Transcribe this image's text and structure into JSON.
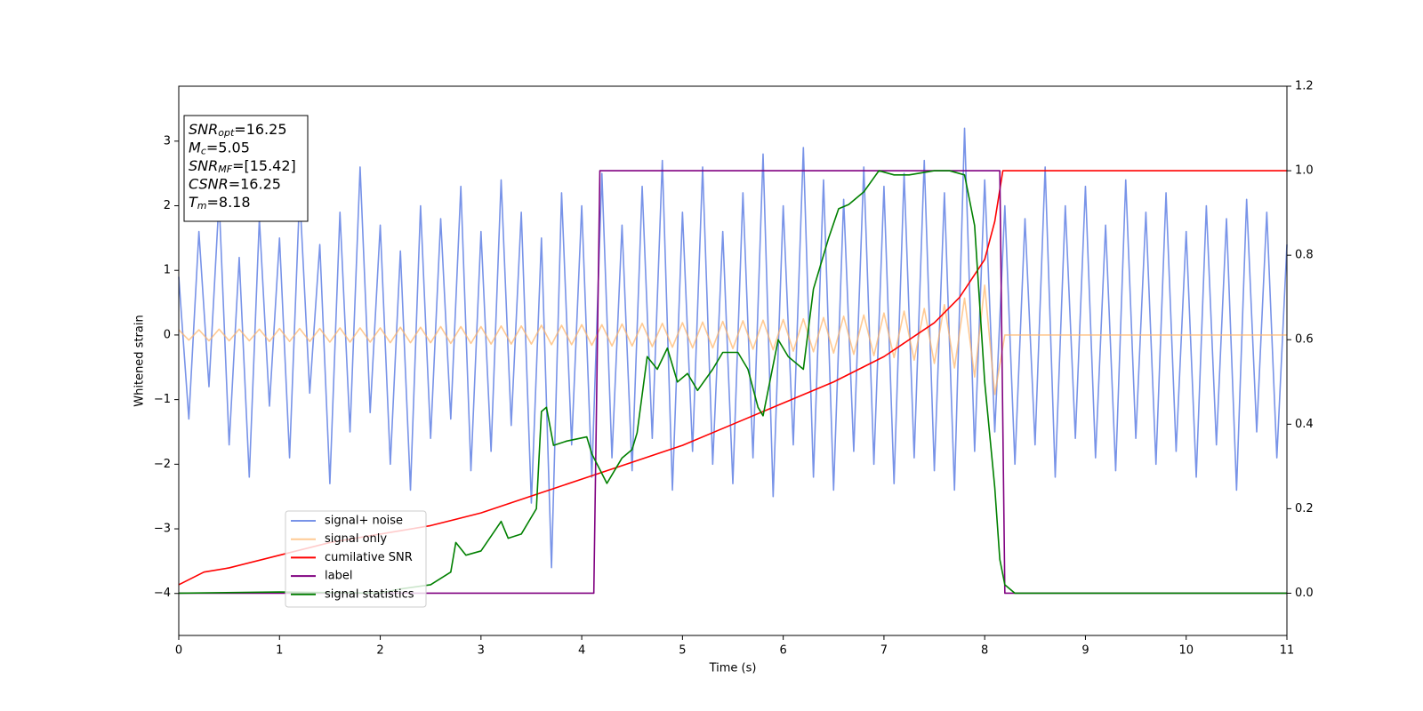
{
  "chart_data": {
    "type": "line",
    "xlabel": "Time (s)",
    "ylabel": "Whitened strain",
    "xlim": [
      0,
      11
    ],
    "xticks": [
      0,
      1,
      2,
      3,
      4,
      5,
      6,
      7,
      8,
      9,
      10,
      11
    ],
    "ylim": [
      -4.65,
      3.85
    ],
    "yticks": [
      {
        "value": -4,
        "label": "−4"
      },
      {
        "value": -3,
        "label": "−3"
      },
      {
        "value": -2,
        "label": "−2"
      },
      {
        "value": -1,
        "label": "−1"
      },
      0,
      1,
      2,
      3
    ],
    "y2lim": [
      -0.1,
      1.2
    ],
    "y2ticks": [
      {
        "value": 0,
        "label": "0.0"
      },
      0.2,
      0.4,
      0.6,
      0.8,
      {
        "value": 1,
        "label": "1.0"
      },
      1.2
    ],
    "legend_loc": "lower left",
    "annotation": [
      {
        "base": "SNR",
        "sub": "opt",
        "rest": "=16.25"
      },
      {
        "base": "M",
        "sub": "c",
        "rest": "=5.05"
      },
      {
        "base": "SNR",
        "sub": "MF",
        "rest": "=[15.42]"
      },
      {
        "base": "CSNR",
        "rest": "=16.25"
      },
      {
        "base": "T",
        "sub": "m",
        "rest": "=8.18"
      }
    ],
    "x": [
      0,
      0.1,
      0.2,
      0.3,
      0.4,
      0.5,
      0.6,
      0.7,
      0.8,
      0.9,
      1,
      1.1,
      1.2,
      1.3,
      1.4,
      1.5,
      1.6,
      1.7,
      1.8,
      1.9,
      2,
      2.1,
      2.2,
      2.3,
      2.4,
      2.5,
      2.6,
      2.7,
      2.8,
      2.9,
      3,
      3.1,
      3.2,
      3.3,
      3.4,
      3.5,
      3.6,
      3.7,
      3.8,
      3.9,
      4,
      4.1,
      4.2,
      4.3,
      4.4,
      4.5,
      4.6,
      4.7,
      4.8,
      4.9,
      5,
      5.1,
      5.2,
      5.3,
      5.4,
      5.5,
      5.6,
      5.7,
      5.8,
      5.9,
      6,
      6.1,
      6.2,
      6.3,
      6.4,
      6.5,
      6.6,
      6.7,
      6.8,
      6.9,
      7,
      7.1,
      7.2,
      7.3,
      7.4,
      7.5,
      7.6,
      7.7,
      7.8,
      7.9,
      8,
      8.1,
      8.2,
      8.3,
      8.4,
      8.5,
      8.6,
      8.7,
      8.8,
      8.9,
      9,
      9.1,
      9.2,
      9.3,
      9.4,
      9.5,
      9.6,
      9.7,
      9.8,
      9.9,
      10,
      10.1,
      10.2,
      10.3,
      10.4,
      10.5,
      10.6,
      10.7,
      10.8,
      10.9,
      11
    ],
    "series": [
      {
        "name": "signal+ noise",
        "color": "#7893e8",
        "axis": "y",
        "values": [
          0.9,
          -1.3,
          1.6,
          -0.8,
          2.1,
          -1.7,
          1.2,
          -2.2,
          1.8,
          -1.1,
          1.5,
          -1.9,
          2.2,
          -0.9,
          1.4,
          -2.3,
          1.9,
          -1.5,
          2.6,
          -1.2,
          1.7,
          -2.0,
          1.3,
          -2.4,
          2.0,
          -1.6,
          1.8,
          -1.3,
          2.3,
          -2.1,
          1.6,
          -1.8,
          2.4,
          -1.4,
          1.9,
          -2.6,
          1.5,
          -3.6,
          2.2,
          -1.7,
          2.0,
          -2.2,
          2.5,
          -1.9,
          1.7,
          -2.1,
          2.3,
          -1.6,
          2.7,
          -2.4,
          1.9,
          -1.8,
          2.6,
          -2.0,
          1.6,
          -2.3,
          2.2,
          -1.9,
          2.8,
          -2.5,
          2.0,
          -1.7,
          2.9,
          -2.2,
          2.4,
          -2.4,
          2.1,
          -1.8,
          2.6,
          -2.0,
          2.3,
          -2.3,
          2.5,
          -1.9,
          2.7,
          -2.1,
          2.2,
          -2.4,
          3.2,
          -1.8,
          2.4,
          -1.5,
          2.0,
          -2.0,
          1.8,
          -1.7,
          2.6,
          -2.2,
          2.0,
          -1.6,
          2.3,
          -1.9,
          1.7,
          -2.1,
          2.4,
          -1.6,
          1.9,
          -2.0,
          2.2,
          -1.8,
          1.6,
          -2.2,
          2.0,
          -1.7,
          1.8,
          -2.4,
          2.1,
          -1.5,
          1.9,
          -1.9,
          1.4
        ]
      },
      {
        "name": "signal only",
        "color": "#ffb366",
        "axis": "y",
        "alpha": 0.7,
        "values": [
          0.08,
          -0.08,
          0.08,
          -0.09,
          0.09,
          -0.09,
          0.09,
          -0.09,
          0.09,
          -0.1,
          0.1,
          -0.1,
          0.1,
          -0.1,
          0.1,
          -0.11,
          0.11,
          -0.11,
          0.11,
          -0.11,
          0.11,
          -0.12,
          0.12,
          -0.12,
          0.12,
          -0.12,
          0.13,
          -0.13,
          0.13,
          -0.13,
          0.13,
          -0.14,
          0.14,
          -0.14,
          0.14,
          -0.14,
          0.15,
          -0.15,
          0.15,
          -0.15,
          0.16,
          -0.16,
          0.16,
          -0.17,
          0.17,
          -0.17,
          0.18,
          -0.18,
          0.18,
          -0.19,
          0.19,
          -0.2,
          0.2,
          -0.2,
          0.21,
          -0.21,
          0.22,
          -0.22,
          0.23,
          -0.23,
          0.24,
          -0.25,
          0.25,
          -0.26,
          0.27,
          -0.28,
          0.29,
          -0.3,
          0.31,
          -0.32,
          0.34,
          -0.35,
          0.37,
          -0.39,
          0.41,
          -0.44,
          0.47,
          -0.51,
          0.57,
          -0.65,
          0.77,
          -0.92,
          0,
          0,
          0,
          0,
          0,
          0,
          0,
          0,
          0,
          0,
          0,
          0,
          0,
          0,
          0,
          0,
          0,
          0,
          0,
          0,
          0,
          0,
          0,
          0,
          0,
          0,
          0,
          0,
          0
        ]
      },
      {
        "name": "cumilative SNR",
        "color": "#ff0000",
        "axis": "y2",
        "x": [
          0,
          0.25,
          0.5,
          1,
          1.5,
          2,
          2.5,
          3,
          3.5,
          4,
          4.5,
          5,
          5.5,
          6,
          6.5,
          7,
          7.5,
          7.75,
          8,
          8.1,
          8.18,
          9,
          10,
          11
        ],
        "values": [
          0.02,
          0.05,
          0.06,
          0.09,
          0.12,
          0.14,
          0.16,
          0.19,
          0.23,
          0.27,
          0.31,
          0.35,
          0.4,
          0.45,
          0.5,
          0.56,
          0.64,
          0.7,
          0.79,
          0.88,
          1.0,
          1.0,
          1.0,
          1.0
        ]
      },
      {
        "name": "label",
        "color": "#800080",
        "axis": "y2",
        "x": [
          0,
          4.12,
          4.18,
          8.15,
          8.2,
          11
        ],
        "values": [
          0,
          0,
          1,
          1,
          0,
          0
        ]
      },
      {
        "name": "signal statistics",
        "color": "#008000",
        "axis": "y2",
        "x": [
          0,
          1,
          2,
          2.2,
          2.5,
          2.7,
          2.75,
          2.85,
          3,
          3.2,
          3.27,
          3.4,
          3.55,
          3.6,
          3.65,
          3.72,
          3.85,
          4.05,
          4.1,
          4.25,
          4.4,
          4.5,
          4.55,
          4.65,
          4.75,
          4.85,
          4.95,
          5.05,
          5.15,
          5.3,
          5.4,
          5.55,
          5.65,
          5.75,
          5.8,
          5.95,
          6.05,
          6.2,
          6.3,
          6.45,
          6.55,
          6.65,
          6.8,
          6.95,
          7.1,
          7.25,
          7.5,
          7.65,
          7.8,
          7.9,
          8.0,
          8.1,
          8.15,
          8.2,
          8.3,
          9,
          10,
          11
        ],
        "values": [
          0,
          0.003,
          0,
          0.01,
          0.02,
          0.05,
          0.12,
          0.09,
          0.1,
          0.17,
          0.13,
          0.14,
          0.2,
          0.43,
          0.44,
          0.35,
          0.36,
          0.37,
          0.33,
          0.26,
          0.32,
          0.34,
          0.38,
          0.56,
          0.53,
          0.58,
          0.5,
          0.52,
          0.48,
          0.53,
          0.57,
          0.57,
          0.53,
          0.44,
          0.42,
          0.6,
          0.56,
          0.53,
          0.72,
          0.84,
          0.91,
          0.92,
          0.95,
          1.0,
          0.99,
          0.99,
          1.0,
          1.0,
          0.99,
          0.87,
          0.5,
          0.25,
          0.08,
          0.02,
          0.0,
          0,
          0,
          0
        ]
      }
    ]
  }
}
